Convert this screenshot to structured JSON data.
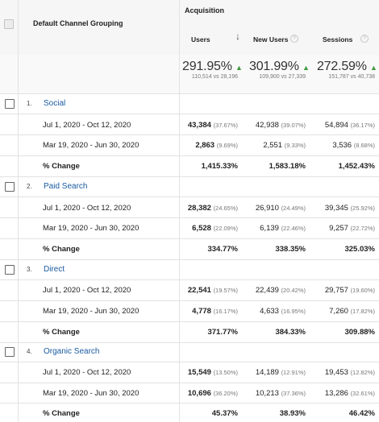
{
  "header": {
    "dimension": "Default Channel Grouping",
    "group": "Acquisition",
    "columns": [
      {
        "label": "Users",
        "help": "?"
      },
      {
        "label": "New Users",
        "help": "?"
      },
      {
        "label": "Sessions",
        "help": "?"
      }
    ],
    "sort_icon": "arrow-down-icon"
  },
  "totals": [
    {
      "pct": "291.95%",
      "detail": "110,514 vs 28,196"
    },
    {
      "pct": "301.99%",
      "detail": "109,900 vs 27,339"
    },
    {
      "pct": "272.59%",
      "detail": "151,787 vs 40,738"
    }
  ],
  "trend_up_icon": "▲",
  "accent_color": "#1a5aa0",
  "trend_color": "#3f9b3f",
  "groups": [
    {
      "num": "1.",
      "name": "Social",
      "rows": [
        {
          "label": "Jul 1, 2020 - Oct 12, 2020",
          "users": "43,384",
          "users_pct": "(37.67%)",
          "new_users": "42,938",
          "new_users_pct": "(39.07%)",
          "sessions": "54,894",
          "sessions_pct": "(36.17%)"
        },
        {
          "label": "Mar 19, 2020 - Jun 30, 2020",
          "users": "2,863",
          "users_pct": "(9.69%)",
          "new_users": "2,551",
          "new_users_pct": "(9.33%)",
          "sessions": "3,536",
          "sessions_pct": "(8.68%)"
        }
      ],
      "change": {
        "label": "% Change",
        "users": "1,415.33%",
        "new_users": "1,583.18%",
        "sessions": "1,452.43%"
      }
    },
    {
      "num": "2.",
      "name": "Paid Search",
      "rows": [
        {
          "label": "Jul 1, 2020 - Oct 12, 2020",
          "users": "28,382",
          "users_pct": "(24.65%)",
          "new_users": "26,910",
          "new_users_pct": "(24.49%)",
          "sessions": "39,345",
          "sessions_pct": "(25.92%)"
        },
        {
          "label": "Mar 19, 2020 - Jun 30, 2020",
          "users": "6,528",
          "users_pct": "(22.09%)",
          "new_users": "6,139",
          "new_users_pct": "(22.46%)",
          "sessions": "9,257",
          "sessions_pct": "(22.72%)"
        }
      ],
      "change": {
        "label": "% Change",
        "users": "334.77%",
        "new_users": "338.35%",
        "sessions": "325.03%"
      }
    },
    {
      "num": "3.",
      "name": "Direct",
      "rows": [
        {
          "label": "Jul 1, 2020 - Oct 12, 2020",
          "users": "22,541",
          "users_pct": "(19.57%)",
          "new_users": "22,439",
          "new_users_pct": "(20.42%)",
          "sessions": "29,757",
          "sessions_pct": "(19.60%)"
        },
        {
          "label": "Mar 19, 2020 - Jun 30, 2020",
          "users": "4,778",
          "users_pct": "(16.17%)",
          "new_users": "4,633",
          "new_users_pct": "(16.95%)",
          "sessions": "7,260",
          "sessions_pct": "(17.82%)"
        }
      ],
      "change": {
        "label": "% Change",
        "users": "371.77%",
        "new_users": "384.33%",
        "sessions": "309.88%"
      }
    },
    {
      "num": "4.",
      "name": "Organic Search",
      "rows": [
        {
          "label": "Jul 1, 2020 - Oct 12, 2020",
          "users": "15,549",
          "users_pct": "(13.50%)",
          "new_users": "14,189",
          "new_users_pct": "(12.91%)",
          "sessions": "19,453",
          "sessions_pct": "(12.82%)"
        },
        {
          "label": "Mar 19, 2020 - Jun 30, 2020",
          "users": "10,696",
          "users_pct": "(36.20%)",
          "new_users": "10,213",
          "new_users_pct": "(37.36%)",
          "sessions": "13,286",
          "sessions_pct": "(32.61%)"
        }
      ],
      "change": {
        "label": "% Change",
        "users": "45.37%",
        "new_users": "38.93%",
        "sessions": "46.42%"
      }
    }
  ]
}
